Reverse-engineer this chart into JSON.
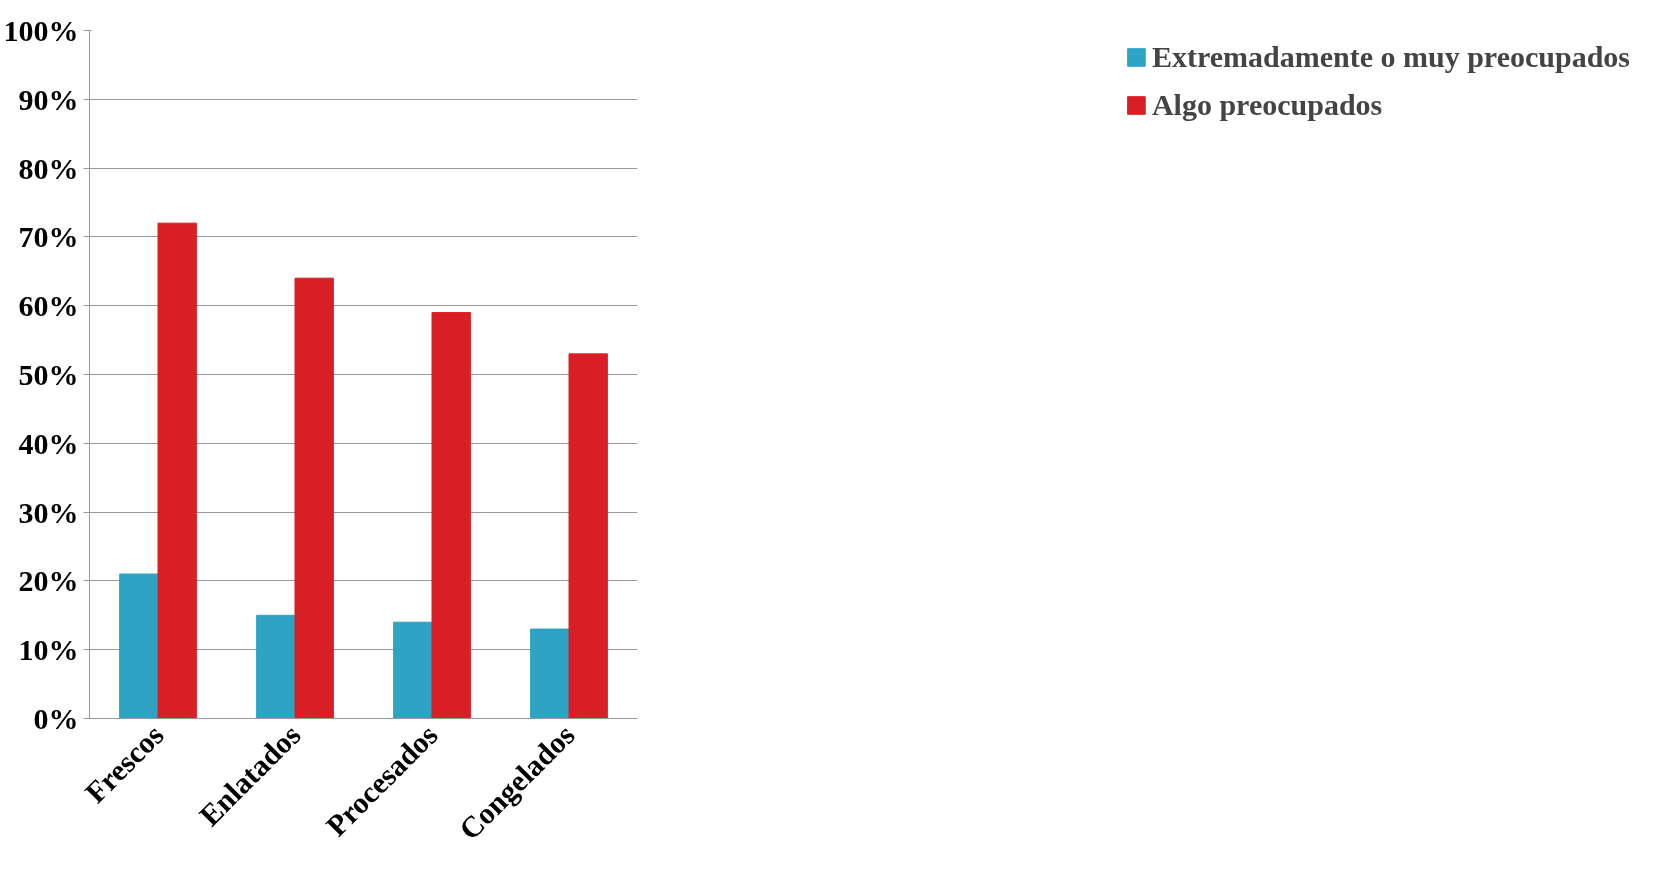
{
  "chart_data": {
    "type": "bar",
    "categories": [
      "Frescos",
      "Enlatados",
      "Procesados",
      "Congelados"
    ],
    "series": [
      {
        "name": "Extremadamente o muy preocupados",
        "color": "#2ea3c4",
        "values": [
          21,
          15,
          14,
          13
        ]
      },
      {
        "name": "Algo preocupados",
        "color": "#d91f26",
        "values": [
          72,
          64,
          59,
          53
        ]
      }
    ],
    "ylim": [
      0,
      100
    ],
    "yticks": [
      {
        "value": 0,
        "label": "0%"
      },
      {
        "value": 10,
        "label": "10%"
      },
      {
        "value": 20,
        "label": "20%"
      },
      {
        "value": 30,
        "label": "30%"
      },
      {
        "value": 40,
        "label": "40%"
      },
      {
        "value": 50,
        "label": "50%"
      },
      {
        "value": 60,
        "label": "60%"
      },
      {
        "value": 70,
        "label": "70%"
      },
      {
        "value": 80,
        "label": "80%"
      },
      {
        "value": 90,
        "label": "90%"
      },
      {
        "value": 100,
        "label": "100%"
      }
    ],
    "grid": "y",
    "legend": "right"
  }
}
